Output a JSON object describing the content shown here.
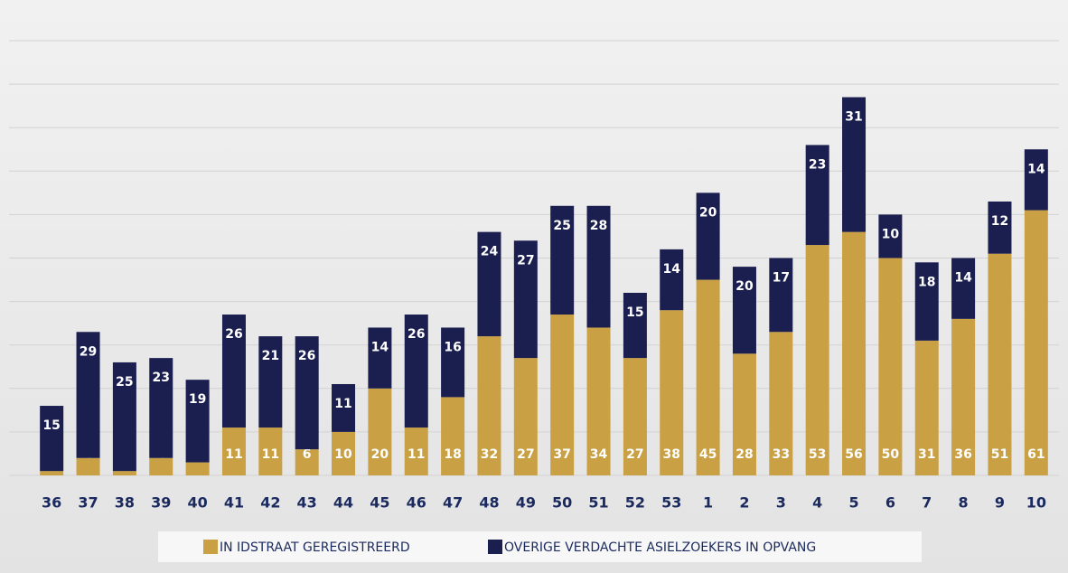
{
  "chart_data": {
    "type": "stacked_bar",
    "categories": [
      "36",
      "37",
      "38",
      "39",
      "40",
      "41",
      "42",
      "43",
      "44",
      "45",
      "46",
      "47",
      "48",
      "49",
      "50",
      "51",
      "52",
      "53",
      "1",
      "2",
      "3",
      "4",
      "5",
      "6",
      "7",
      "8",
      "9",
      "10"
    ],
    "series": [
      {
        "name": "IN IDSTRAAT GEREGISTREERD",
        "color": "#c9a044",
        "values": [
          1,
          4,
          1,
          4,
          3,
          11,
          11,
          6,
          10,
          20,
          11,
          18,
          32,
          27,
          37,
          34,
          27,
          38,
          45,
          28,
          33,
          53,
          56,
          50,
          31,
          36,
          51,
          61
        ]
      },
      {
        "name": "OVERIGE VERDACHTE ASIELZOEKERS IN OPVANG",
        "color": "#1b1f50",
        "values": [
          15,
          29,
          25,
          23,
          19,
          26,
          21,
          26,
          11,
          14,
          26,
          16,
          24,
          27,
          25,
          28,
          15,
          14,
          20,
          20,
          17,
          23,
          31,
          10,
          18,
          14,
          12,
          14
        ]
      }
    ],
    "ylim": [
      0,
      100
    ],
    "yticks": [
      0,
      10,
      20,
      30,
      40,
      50,
      60,
      70,
      80,
      90,
      100
    ],
    "grid": true,
    "show_tick_labels": false,
    "legend": "bottom"
  }
}
